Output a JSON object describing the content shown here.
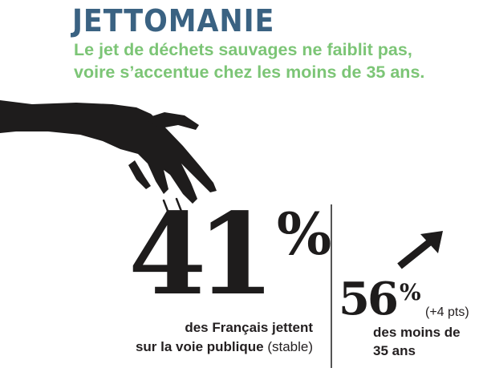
{
  "header": {
    "title": "JETTOMANIE",
    "subtitle_line1": "Le jet de déchets sauvages ne faiblit pas,",
    "subtitle_line2": "voire s’accentue chez les moins de 35 ans."
  },
  "main_stat": {
    "value": "41",
    "unit": "%",
    "caption_line1": "des Français jettent",
    "caption_line2": "sur la voie publique",
    "caption_note": "(stable)"
  },
  "secondary_stat": {
    "value": "56",
    "unit": "%",
    "change": "(+4 pts)",
    "caption_line1": "des moins de",
    "caption_line2": "35 ans",
    "trend_icon": "arrow-up-right"
  },
  "colors": {
    "title": "#3a6282",
    "subtitle": "#7cc576",
    "ink": "#1e1c1c"
  }
}
